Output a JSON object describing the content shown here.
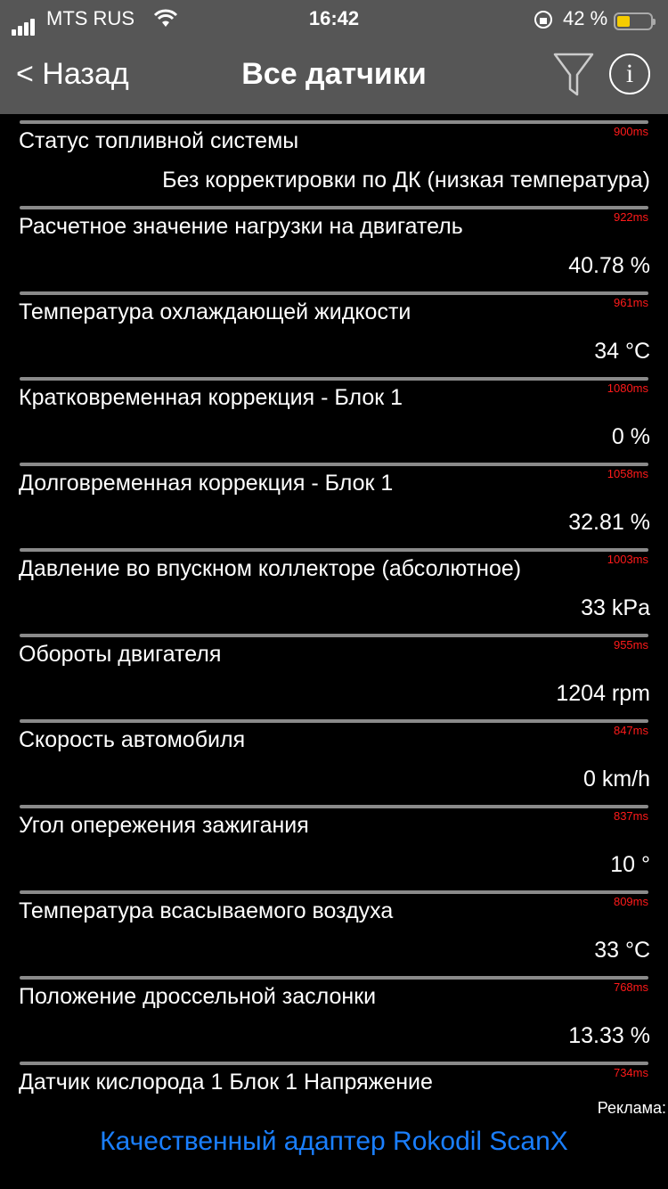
{
  "status_bar": {
    "carrier": "MTS RUS",
    "time": "16:42",
    "battery_pct": "42 %",
    "battery_level": 0.42,
    "battery_color": "#f5cc00"
  },
  "nav": {
    "back_label": "< Назад",
    "title": "Все датчики",
    "filter_icon": "filter-icon",
    "info_icon": "info-icon",
    "info_glyph": "i"
  },
  "sensors": [
    {
      "name": "Статус топливной системы",
      "ms": "900ms",
      "value": "Без корректировки по ДК (низкая температура)"
    },
    {
      "name": "Расчетное значение нагрузки на двигатель",
      "ms": "922ms",
      "value": "40.78 %"
    },
    {
      "name": "Температура охлаждающей жидкости",
      "ms": "961ms",
      "value": "34 °C"
    },
    {
      "name": "Кратковременная коррекция - Блок 1",
      "ms": "1080ms",
      "value": "0 %"
    },
    {
      "name": "Долговременная коррекция - Блок 1",
      "ms": "1058ms",
      "value": "32.81 %"
    },
    {
      "name": "Давление во впускном коллекторе (абсолютное)",
      "ms": "1003ms",
      "value": "33 kPa"
    },
    {
      "name": "Обороты двигателя",
      "ms": "955ms",
      "value": "1204 rpm"
    },
    {
      "name": "Скорость автомобиля",
      "ms": "847ms",
      "value": "0 km/h"
    },
    {
      "name": "Угол опережения зажигания",
      "ms": "837ms",
      "value": "10 °"
    },
    {
      "name": "Температура всасываемого воздуха",
      "ms": "809ms",
      "value": "33 °C"
    },
    {
      "name": "Положение дроссельной заслонки",
      "ms": "768ms",
      "value": "13.33 %"
    },
    {
      "name": "Датчик кислорода 1 Блок 1 Напряжение",
      "ms": "734ms",
      "value": ""
    }
  ],
  "ad": {
    "label": "Реклама:",
    "text": "Качественный адаптер Rokodil ScanX",
    "color": "#1a7fff"
  }
}
